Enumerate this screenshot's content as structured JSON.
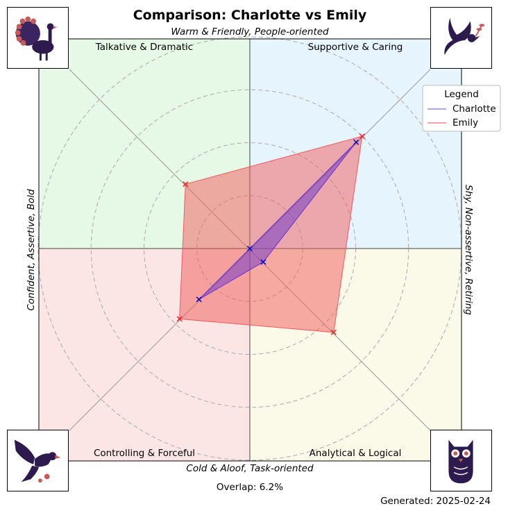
{
  "chart_data": {
    "type": "radar",
    "title": "Comparison: Charlotte vs Emily",
    "axis_labels": {
      "top": "Warm & Friendly, People-oriented",
      "bottom": "Cold & Aloof, Task-oriented",
      "left": "Confident, Assertive, Bold",
      "right": "Shy, Non-assertive, Retiring"
    },
    "quadrants": [
      {
        "name": "Talkative & Dramatic",
        "position": "top-left",
        "color": "#e6f9e6"
      },
      {
        "name": "Supportive & Caring",
        "position": "top-right",
        "color": "#e6f4fd"
      },
      {
        "name": "Controlling & Forceful",
        "position": "bottom-left",
        "color": "#fbe5e5"
      },
      {
        "name": "Analytical & Logical",
        "position": "bottom-right",
        "color": "#fbf9e8"
      }
    ],
    "axes": [
      "Supportive & Caring",
      "Talkative & Dramatic",
      "Controlling & Forceful",
      "Analytical & Logical"
    ],
    "rlim": [
      0,
      1
    ],
    "grid": true,
    "legend": {
      "title": "Legend",
      "position": "top-right"
    },
    "series": [
      {
        "name": "Charlotte",
        "color": "#0000cc",
        "fill": "#6a33cc",
        "values": [
          0.71,
          0.0,
          0.34,
          0.09
        ]
      },
      {
        "name": "Emily",
        "color": "#ee2222",
        "fill": "#f05a5a",
        "values": [
          0.75,
          0.43,
          0.47,
          0.56
        ]
      }
    ],
    "overlap": "Overlap: 6.2%",
    "generated": "Generated: 2025-02-24"
  },
  "icons": {
    "top_left": "peacock-icon",
    "top_right": "dove-icon",
    "bottom_left": "eagle-icon",
    "bottom_right": "owl-icon"
  }
}
